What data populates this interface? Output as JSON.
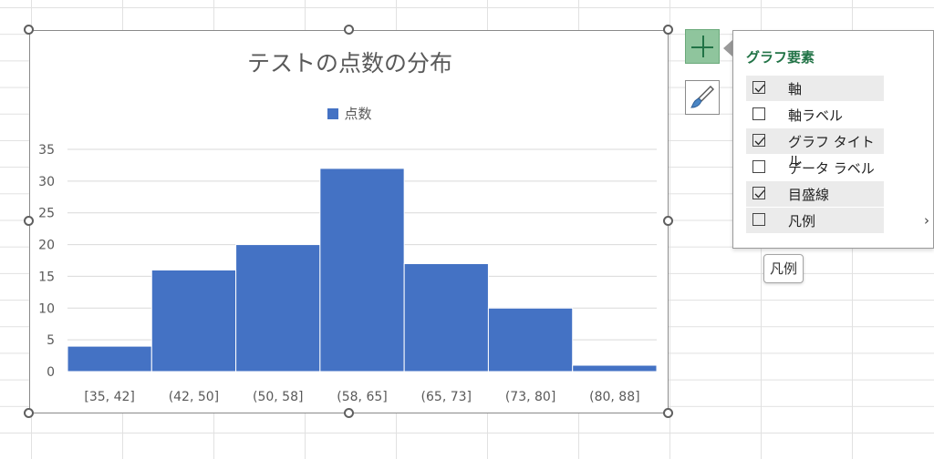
{
  "chart_data": {
    "type": "bar",
    "title": "テストの点数の分布",
    "categories": [
      "[35, 42]",
      "(42, 50]",
      "(50, 58]",
      "(58, 65]",
      "(65, 73]",
      "(73, 80]",
      "(80, 88]"
    ],
    "series": [
      {
        "name": "点数",
        "values": [
          4,
          16,
          20,
          32,
          17,
          10,
          1
        ],
        "color": "#4472c4"
      }
    ],
    "ylim": [
      0,
      35
    ],
    "yticks": [
      0,
      5,
      10,
      15,
      20,
      25,
      30,
      35
    ],
    "grid": true,
    "legend_position": "top"
  },
  "panel": {
    "title": "グラフ要素",
    "items": [
      {
        "label": "軸",
        "checked": true
      },
      {
        "label": "軸ラベル",
        "checked": false
      },
      {
        "label": "グラフ タイトル",
        "checked": true
      },
      {
        "label": "データ ラベル",
        "checked": false
      },
      {
        "label": "目盛線",
        "checked": true
      },
      {
        "label": "凡例",
        "checked": false
      }
    ],
    "chevron": "›"
  },
  "tooltip": {
    "text": "凡例"
  },
  "icons": {
    "plus": "plus-icon",
    "brush": "brush-icon"
  },
  "colors": {
    "accent": "#217346",
    "bar": "#4472c4",
    "plus_bg": "#8fc59d"
  }
}
